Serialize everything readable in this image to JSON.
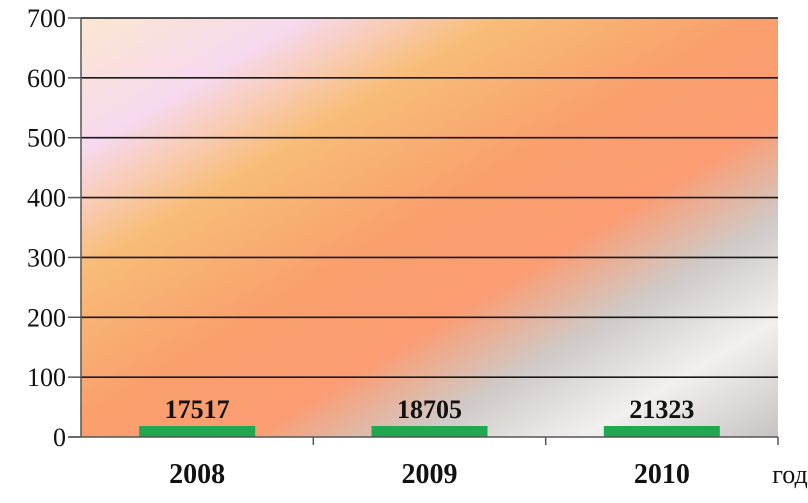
{
  "chart_data": {
    "type": "bar",
    "title": "",
    "xlabel": "год",
    "ylabel": "",
    "ylim": [
      0,
      700
    ],
    "yticks": [
      0,
      100,
      200,
      300,
      400,
      500,
      600,
      700
    ],
    "categories": [
      "2008",
      "2009",
      "2010"
    ],
    "values": [
      17517,
      18705,
      21323
    ],
    "data_labels": [
      "17517",
      "18705",
      "21323"
    ],
    "grid": true,
    "legend": "none",
    "colors": {
      "bar": "#1fa84f",
      "gridline": "#1a1a1a",
      "axis": "#555555",
      "text": "#111111",
      "plot_gradient": [
        "#fbe7d0",
        "#f7d9ee",
        "#f8bd78",
        "#f9a06d",
        "#fb9c72",
        "#cfcac8",
        "#f2f0ef",
        "#c7c3c2"
      ]
    }
  }
}
